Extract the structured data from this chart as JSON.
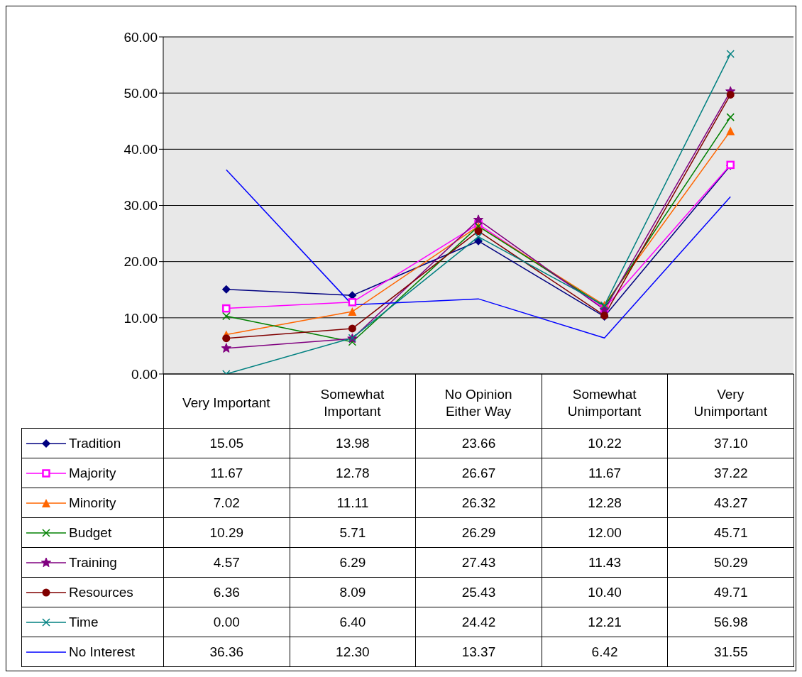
{
  "chart_data": {
    "type": "line",
    "categories": [
      "Very Important",
      "Somewhat Important",
      "No Opinion Either Way",
      "Somewhat Unimportant",
      "Very Unimportant"
    ],
    "ylim": [
      0,
      60
    ],
    "yticks": [
      {
        "value": 0,
        "label": "0.00"
      },
      {
        "value": 10,
        "label": "10.00"
      },
      {
        "value": 20,
        "label": "20.00"
      },
      {
        "value": 30,
        "label": "30.00"
      },
      {
        "value": 40,
        "label": "40.00"
      },
      {
        "value": 50,
        "label": "50.00"
      },
      {
        "value": 60,
        "label": "60.00"
      }
    ],
    "grid": "y",
    "legend": "bottom",
    "series": [
      {
        "name": "Tradition",
        "color": "#000080",
        "marker": "diamond",
        "values": [
          15.05,
          13.98,
          23.66,
          10.22,
          37.1
        ],
        "value_labels": [
          "15.05",
          "13.98",
          "23.66",
          "10.22",
          "37.10"
        ]
      },
      {
        "name": "Majority",
        "color": "#ff00ff",
        "marker": "square",
        "values": [
          11.67,
          12.78,
          26.67,
          11.67,
          37.22
        ],
        "value_labels": [
          "11.67",
          "12.78",
          "26.67",
          "11.67",
          "37.22"
        ]
      },
      {
        "name": "Minority",
        "color": "#ff6600",
        "marker": "triangle",
        "values": [
          7.02,
          11.11,
          26.32,
          12.28,
          43.27
        ],
        "value_labels": [
          "7.02",
          "11.11",
          "26.32",
          "12.28",
          "43.27"
        ]
      },
      {
        "name": "Budget",
        "color": "#008000",
        "marker": "cross",
        "values": [
          10.29,
          5.71,
          26.29,
          12.0,
          45.71
        ],
        "value_labels": [
          "10.29",
          "5.71",
          "26.29",
          "12.00",
          "45.71"
        ]
      },
      {
        "name": "Training",
        "color": "#800080",
        "marker": "star",
        "values": [
          4.57,
          6.29,
          27.43,
          11.43,
          50.29
        ],
        "value_labels": [
          "4.57",
          "6.29",
          "27.43",
          "11.43",
          "50.29"
        ]
      },
      {
        "name": "Resources",
        "color": "#800000",
        "marker": "circle",
        "values": [
          6.36,
          8.09,
          25.43,
          10.4,
          49.71
        ],
        "value_labels": [
          "6.36",
          "8.09",
          "25.43",
          "10.40",
          "49.71"
        ]
      },
      {
        "name": "Time",
        "color": "#008080",
        "marker": "cross",
        "values": [
          0.0,
          6.4,
          24.42,
          12.21,
          56.98
        ],
        "value_labels": [
          "0.00",
          "6.40",
          "24.42",
          "12.21",
          "56.98"
        ]
      },
      {
        "name": "No Interest",
        "color": "#0000ff",
        "marker": "none",
        "values": [
          36.36,
          12.3,
          13.37,
          6.42,
          31.55
        ],
        "value_labels": [
          "36.36",
          "12.30",
          "13.37",
          "6.42",
          "31.55"
        ]
      }
    ]
  }
}
